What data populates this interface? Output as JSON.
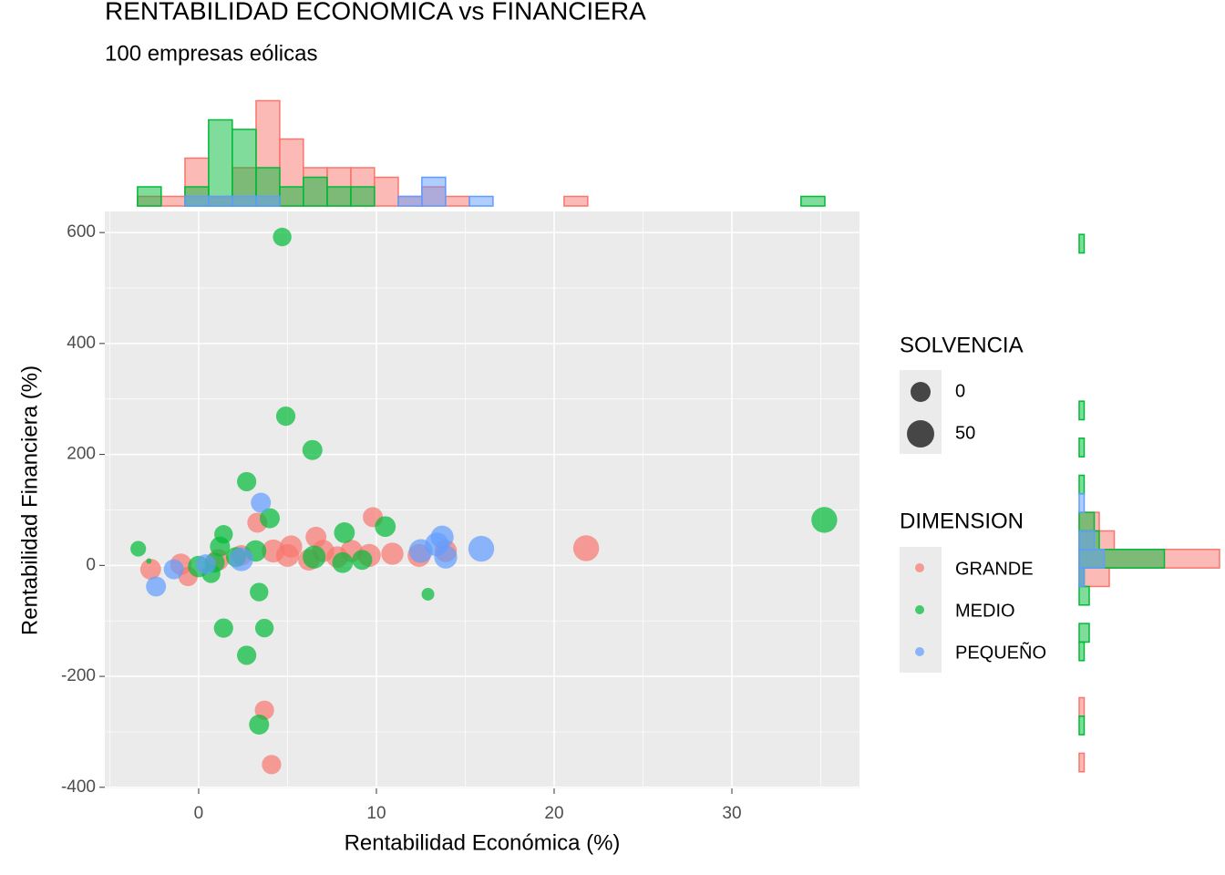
{
  "chart_data": {
    "type": "scatter",
    "title": "RENTABILIDAD ECONOMICA vs FINANCIERA",
    "subtitle": "100 empresas eólicas",
    "xlabel": "Rentabilidad Económica (%)",
    "ylabel": "Rentabilidad Financiera (%)",
    "xlim": [
      -5.28,
      37.18
    ],
    "ylim": [
      -402,
      638
    ],
    "xticks": [
      0,
      10,
      20,
      30
    ],
    "yticks": [
      -400,
      -200,
      0,
      200,
      400,
      600
    ],
    "grid": true,
    "size_legend": {
      "title": "SOLVENCIA",
      "values": [
        0,
        50
      ]
    },
    "color_legend_title": "DIMENSION",
    "x_bins": [
      -3.44,
      -2.11,
      -0.77,
      0.56,
      1.89,
      3.23,
      4.56,
      5.89,
      7.23,
      8.56,
      9.89,
      11.23,
      12.56,
      13.89,
      15.23,
      16.56,
      17.89,
      19.23,
      20.56,
      21.89,
      23.23,
      24.56,
      25.89,
      27.23,
      28.56,
      29.89,
      31.23,
      32.56,
      33.89,
      35.23
    ],
    "y_bins": [
      -372,
      -338.6,
      -305.2,
      -271.8,
      -238.4,
      -205,
      -171.6,
      -138.2,
      -104.8,
      -71.4,
      -38,
      -4.6,
      28.8,
      62.2,
      95.6,
      129,
      162.4,
      195.8,
      229.2,
      262.6,
      296,
      329.4,
      362.8,
      396.2,
      429.6,
      463,
      496.4,
      529.8,
      563.2,
      596.6
    ],
    "series": [
      {
        "name": "GRANDE",
        "color": "#F8766D",
        "x": [
          3.7,
          4.1,
          21.8,
          9.8,
          3.3,
          -2.7,
          -1.0,
          -0.6,
          1.1,
          2.4,
          4.2,
          5.0,
          6.6,
          7.0,
          8.6,
          9.6,
          10.9,
          12.4,
          13.9,
          5.2,
          6.2,
          7.8
        ],
        "y": [
          -261,
          -359,
          31,
          87,
          77,
          -7,
          2,
          -20,
          10,
          18,
          26,
          18,
          51,
          26,
          26,
          18,
          21,
          18,
          26,
          34,
          10,
          15
        ],
        "size": [
          -5,
          -5,
          40,
          0,
          0,
          5,
          10,
          -5,
          10,
          5,
          20,
          20,
          5,
          15,
          15,
          20,
          15,
          20,
          15,
          15,
          10,
          10
        ],
        "x_hist": [
          1,
          1,
          5,
          1,
          4,
          11,
          7,
          4,
          4,
          4,
          3,
          1,
          2,
          1,
          0,
          0,
          0,
          0,
          1,
          0,
          0,
          0,
          0,
          0,
          0,
          0,
          0,
          0,
          0
        ],
        "y_hist": [
          1,
          0,
          0,
          1,
          0,
          0,
          0,
          0,
          0,
          0,
          6,
          28,
          7,
          4,
          0,
          0,
          0,
          0,
          0,
          0,
          0,
          0,
          0,
          0,
          0,
          0,
          0,
          0,
          0
        ]
      },
      {
        "name": "MEDIO",
        "color": "#00BA38",
        "x": [
          4.7,
          4.9,
          6.4,
          2.7,
          35.2,
          4.0,
          10.5,
          8.2,
          1.4,
          -3.4,
          1.2,
          0.9,
          0.7,
          0,
          3.2,
          6.5,
          8.1,
          9.2,
          3.4,
          12.9,
          1.4,
          3.7,
          2.7,
          3.4,
          -2.8,
          2.1
        ],
        "y": [
          592,
          269,
          208,
          151,
          82,
          85,
          70,
          59,
          56,
          30,
          34,
          5,
          -15,
          -2,
          26,
          15,
          5,
          10,
          -48,
          -52,
          -113,
          -113,
          -162,
          -287,
          8,
          15
        ],
        "size": [
          -10,
          -5,
          0,
          -5,
          40,
          0,
          5,
          5,
          -10,
          -30,
          0,
          0,
          -10,
          10,
          10,
          20,
          5,
          0,
          -10,
          -50,
          -5,
          -10,
          -5,
          0,
          -100,
          0
        ],
        "x_hist": [
          2,
          0,
          2,
          9,
          8,
          4,
          2,
          3,
          2,
          2,
          0,
          0,
          0,
          0,
          0,
          0,
          0,
          0,
          0,
          0,
          0,
          0,
          0,
          0,
          0,
          0,
          0,
          0,
          1
        ],
        "y_hist": [
          0,
          0,
          1,
          0,
          0,
          0,
          1,
          2,
          0,
          2,
          1,
          17,
          4,
          3,
          0,
          1,
          0,
          1,
          0,
          1,
          0,
          0,
          0,
          0,
          0,
          0,
          0,
          0,
          1
        ]
      },
      {
        "name": "PEQUEÑO",
        "color": "#619CFF",
        "x": [
          3.5,
          -2.4,
          -1.4,
          15.9,
          13.7,
          13.4,
          12.5,
          13.9,
          2.4,
          0.4
        ],
        "y": [
          113,
          -38,
          -7,
          30,
          51,
          38,
          26,
          15,
          11,
          2
        ],
        "size": [
          0,
          0,
          0,
          40,
          20,
          25,
          25,
          20,
          25,
          0
        ],
        "x_hist": [
          0,
          0,
          1,
          1,
          1,
          1,
          0,
          0,
          0,
          0,
          0,
          1,
          3,
          0,
          1,
          0,
          0,
          0,
          0,
          0,
          0,
          0,
          0,
          0,
          0,
          0,
          0,
          0,
          0
        ],
        "y_hist": [
          0,
          0,
          0,
          0,
          0,
          0,
          0,
          0,
          0,
          0,
          1,
          5,
          3,
          0,
          1,
          0,
          0,
          0,
          0,
          0,
          0,
          0,
          0,
          0,
          0,
          0,
          0,
          0,
          0
        ]
      }
    ]
  }
}
